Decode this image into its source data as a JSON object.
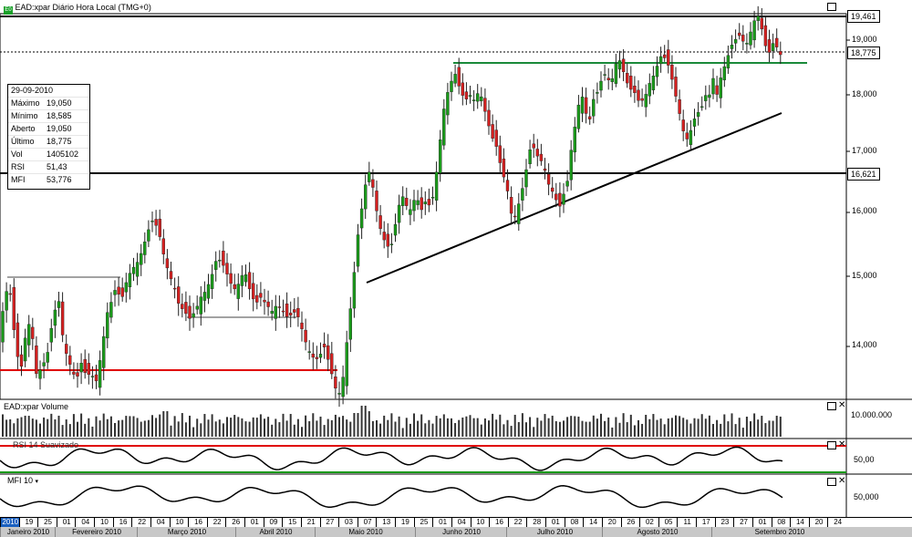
{
  "title": "EAD:xpar Diário Hora Local (TMG+0)",
  "info": {
    "date": "29-09-2010",
    "rows": [
      {
        "label": "Máximo",
        "value": "19,050"
      },
      {
        "label": "Mínimo",
        "value": "18,585"
      },
      {
        "label": "Aberto",
        "value": "19,050"
      },
      {
        "label": "Último",
        "value": "18,775"
      },
      {
        "label": "Vol",
        "value": "1405102"
      },
      {
        "label": "RSI",
        "value": "51,43"
      },
      {
        "label": "MFI",
        "value": "53,776"
      }
    ]
  },
  "price_labels": {
    "high": "19,461",
    "last": "18,775",
    "support": "16,621"
  },
  "volume_panel": {
    "title": "EAD:xpar Volume",
    "axis": "10.000.000"
  },
  "rsi_panel": {
    "title": "RSI 14 Suavizado",
    "axis": "50,00"
  },
  "mfi_panel": {
    "title": "MFI 10",
    "axis": "50,000"
  },
  "colors": {
    "up": "#1a9a1a",
    "down": "#d42020",
    "support_red": "#e00000",
    "resistance_green": "#1a8a3a",
    "volume": "#333333"
  },
  "chart_data": {
    "type": "candlestick",
    "ylim": [
      13000,
      19700
    ],
    "yticks": [
      "14,000",
      "15,000",
      "16,000",
      "17,000",
      "18,000",
      "19,000"
    ],
    "date_ticks": [
      "2010",
      "19",
      "25",
      "01",
      "04",
      "10",
      "16",
      "22",
      "04",
      "10",
      "16",
      "22",
      "26",
      "01",
      "09",
      "15",
      "21",
      "27",
      "03",
      "07",
      "13",
      "19",
      "25",
      "01",
      "04",
      "10",
      "16",
      "22",
      "28",
      "01",
      "08",
      "14",
      "20",
      "26",
      "02",
      "05",
      "11",
      "17",
      "23",
      "27",
      "01",
      "08",
      "14",
      "20",
      "24"
    ],
    "months": [
      "Janeiro 2010",
      "Fevereiro 2010",
      "Março 2010",
      "Abril 2010",
      "Maio 2010",
      "Junho 2010",
      "Julho 2010",
      "Agosto 2010",
      "Setembro 2010"
    ],
    "close_path": [
      [
        0,
        14200
      ],
      [
        5,
        14700
      ],
      [
        10,
        14900
      ],
      [
        14,
        14400
      ],
      [
        18,
        13900
      ],
      [
        24,
        13700
      ],
      [
        30,
        14400
      ],
      [
        36,
        14100
      ],
      [
        40,
        13600
      ],
      [
        46,
        13700
      ],
      [
        52,
        13900
      ],
      [
        58,
        14400
      ],
      [
        64,
        14700
      ],
      [
        70,
        14000
      ],
      [
        78,
        13700
      ],
      [
        84,
        13500
      ],
      [
        88,
        13800
      ],
      [
        94,
        13600
      ],
      [
        100,
        13600
      ],
      [
        106,
        13500
      ],
      [
        112,
        14000
      ],
      [
        118,
        14500
      ],
      [
        124,
        14700
      ],
      [
        128,
        14900
      ],
      [
        132,
        14600
      ],
      [
        138,
        14900
      ],
      [
        144,
        15100
      ],
      [
        150,
        15200
      ],
      [
        156,
        15400
      ],
      [
        162,
        15700
      ],
      [
        168,
        15900
      ],
      [
        174,
        15700
      ],
      [
        180,
        15300
      ],
      [
        186,
        15000
      ],
      [
        190,
        14900
      ],
      [
        196,
        14600
      ],
      [
        202,
        14500
      ],
      [
        208,
        14400
      ],
      [
        214,
        14500
      ],
      [
        220,
        14700
      ],
      [
        226,
        14800
      ],
      [
        232,
        15000
      ],
      [
        238,
        15300
      ],
      [
        244,
        15200
      ],
      [
        250,
        15000
      ],
      [
        256,
        14800
      ],
      [
        262,
        14900
      ],
      [
        268,
        15100
      ],
      [
        274,
        14800
      ],
      [
        280,
        14600
      ],
      [
        286,
        14700
      ],
      [
        292,
        14600
      ],
      [
        298,
        14500
      ],
      [
        304,
        14600
      ],
      [
        310,
        14500
      ],
      [
        316,
        14400
      ],
      [
        322,
        14500
      ],
      [
        328,
        14400
      ],
      [
        334,
        14100
      ],
      [
        340,
        13900
      ],
      [
        346,
        13800
      ],
      [
        352,
        13900
      ],
      [
        356,
        14000
      ],
      [
        362,
        13700
      ],
      [
        368,
        13400
      ],
      [
        374,
        13300
      ],
      [
        378,
        13800
      ],
      [
        384,
        14500
      ],
      [
        388,
        15000
      ],
      [
        392,
        15600
      ],
      [
        396,
        16000
      ],
      [
        400,
        16400
      ],
      [
        404,
        16700
      ],
      [
        408,
        16500
      ],
      [
        412,
        16100
      ],
      [
        416,
        15800
      ],
      [
        420,
        15600
      ],
      [
        424,
        15500
      ],
      [
        428,
        15400
      ],
      [
        432,
        15700
      ],
      [
        436,
        16000
      ],
      [
        440,
        16300
      ],
      [
        444,
        16200
      ],
      [
        448,
        16000
      ],
      [
        452,
        16100
      ],
      [
        456,
        16300
      ],
      [
        460,
        16100
      ],
      [
        464,
        16000
      ],
      [
        468,
        16300
      ],
      [
        472,
        16000
      ],
      [
        476,
        16400
      ],
      [
        480,
        16800
      ],
      [
        484,
        17400
      ],
      [
        488,
        17900
      ],
      [
        492,
        18100
      ],
      [
        496,
        18300
      ],
      [
        500,
        18400
      ],
      [
        504,
        18100
      ],
      [
        510,
        17900
      ],
      [
        516,
        18000
      ],
      [
        520,
        17900
      ],
      [
        526,
        18100
      ],
      [
        530,
        17800
      ],
      [
        534,
        17600
      ],
      [
        538,
        17300
      ],
      [
        544,
        17100
      ],
      [
        550,
        16700
      ],
      [
        556,
        16400
      ],
      [
        560,
        16000
      ],
      [
        564,
        15900
      ],
      [
        570,
        16200
      ],
      [
        576,
        16600
      ],
      [
        580,
        17000
      ],
      [
        584,
        17100
      ],
      [
        590,
        16900
      ],
      [
        596,
        16800
      ],
      [
        600,
        16500
      ],
      [
        604,
        16400
      ],
      [
        610,
        16200
      ],
      [
        614,
        16100
      ],
      [
        618,
        16300
      ],
      [
        622,
        16500
      ],
      [
        626,
        17000
      ],
      [
        630,
        17400
      ],
      [
        634,
        17800
      ],
      [
        638,
        18000
      ],
      [
        642,
        17700
      ],
      [
        646,
        17500
      ],
      [
        650,
        17900
      ],
      [
        654,
        18000
      ],
      [
        658,
        18200
      ],
      [
        662,
        18400
      ],
      [
        666,
        18300
      ],
      [
        670,
        18200
      ],
      [
        674,
        18500
      ],
      [
        678,
        18700
      ],
      [
        682,
        18500
      ],
      [
        686,
        18300
      ],
      [
        690,
        18100
      ],
      [
        694,
        18100
      ],
      [
        700,
        17900
      ],
      [
        706,
        17900
      ],
      [
        712,
        18200
      ],
      [
        718,
        18400
      ],
      [
        724,
        18700
      ],
      [
        728,
        18700
      ],
      [
        734,
        18500
      ],
      [
        738,
        18200
      ],
      [
        742,
        17900
      ],
      [
        746,
        17600
      ],
      [
        750,
        17300
      ],
      [
        754,
        17200
      ],
      [
        758,
        17400
      ],
      [
        762,
        17600
      ],
      [
        766,
        17700
      ],
      [
        770,
        17800
      ],
      [
        774,
        18000
      ],
      [
        778,
        18000
      ],
      [
        782,
        18300
      ],
      [
        786,
        18000
      ],
      [
        790,
        18300
      ],
      [
        794,
        18500
      ],
      [
        798,
        18700
      ],
      [
        802,
        18900
      ],
      [
        806,
        19000
      ],
      [
        810,
        19100
      ],
      [
        814,
        19000
      ],
      [
        818,
        18900
      ],
      [
        822,
        19100
      ],
      [
        826,
        19300
      ],
      [
        830,
        19500
      ],
      [
        834,
        19300
      ],
      [
        838,
        19000
      ],
      [
        842,
        18700
      ],
      [
        846,
        18900
      ],
      [
        850,
        19000
      ],
      [
        854,
        18700
      ],
      [
        858,
        18775
      ]
    ]
  }
}
